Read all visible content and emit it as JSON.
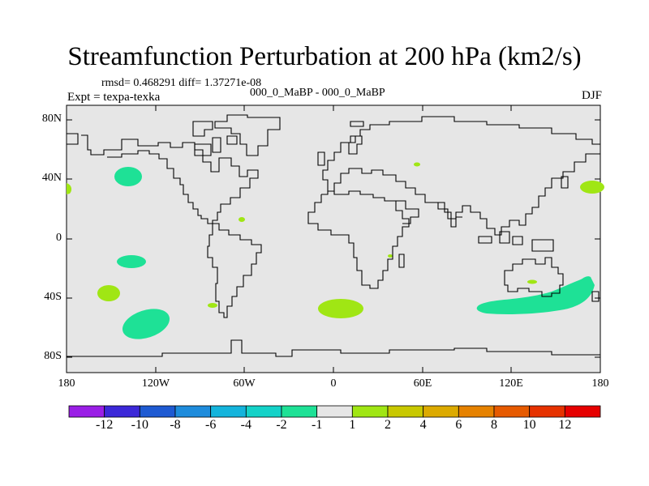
{
  "title": "Streamfunction Perturbation at 200 hPa (km2/s)",
  "stats_line": "rmsd= 0.468291 diff= 1.37271e-08",
  "expt_line": "Expt = texpa-texka",
  "center_line": "000_0_MaBP - 000_0_MaBP",
  "season": "DJF",
  "lat_labels": [
    "80N",
    "40N",
    "0",
    "40S",
    "80S"
  ],
  "lon_labels": [
    "180",
    "120W",
    "60W",
    "0",
    "60E",
    "120E",
    "180"
  ],
  "colorbar": {
    "labels": [
      "-12",
      "-10",
      "-8",
      "-6",
      "-4",
      "-2",
      "-1",
      "1",
      "2",
      "4",
      "6",
      "8",
      "10",
      "12"
    ],
    "colors": [
      "#9a1ee6",
      "#3c28d8",
      "#1e5ad2",
      "#1e8cdc",
      "#14b4dc",
      "#14d2c8",
      "#1ee196",
      "#e6e6e6",
      "#a0e614",
      "#c8c800",
      "#dcaa00",
      "#e68200",
      "#e65a00",
      "#e63200",
      "#e60000"
    ]
  },
  "colors": {
    "ocean": "#e6e6e6",
    "negative_fill": "#1ee196",
    "positive_fill": "#a0e614",
    "coast": "#000000"
  }
}
